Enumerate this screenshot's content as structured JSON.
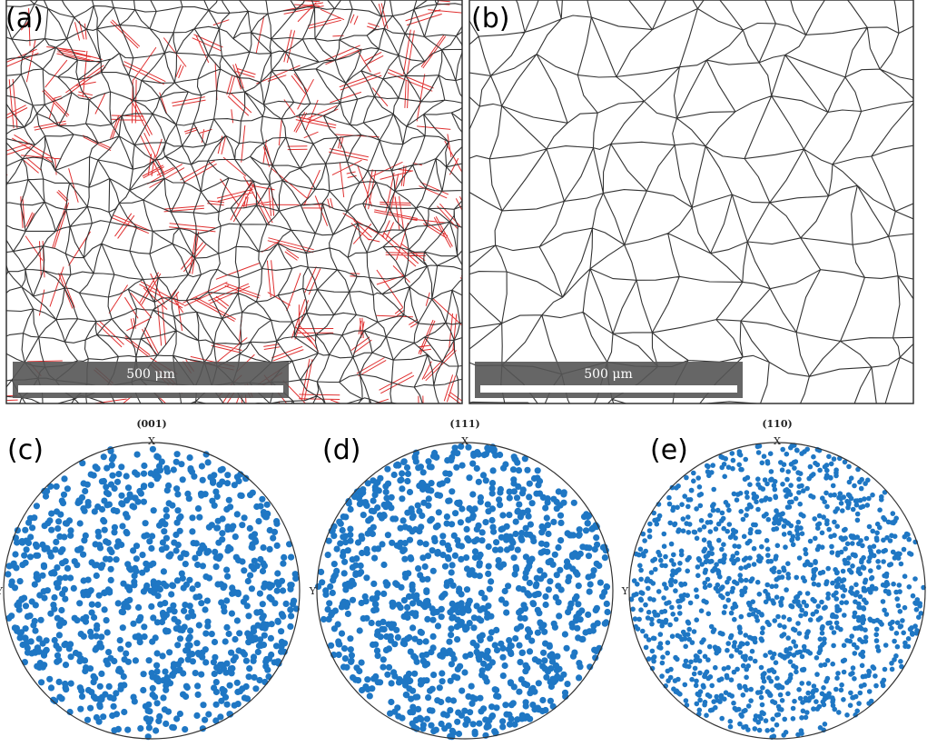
{
  "panels": [
    {
      "label": "(a)",
      "scale_bar": "500 μm"
    },
    {
      "label": "(b)",
      "scale_bar": "500 μm"
    }
  ],
  "pole_figures": [
    {
      "label": "(c)",
      "title": "(001)",
      "x_axis": "X",
      "y_axis": "Y"
    },
    {
      "label": "(d)",
      "title": "(111)",
      "x_axis": "X",
      "y_axis": "Y"
    },
    {
      "label": "(e)",
      "title": "(110)",
      "x_axis": "X",
      "y_axis": "Y"
    }
  ]
}
